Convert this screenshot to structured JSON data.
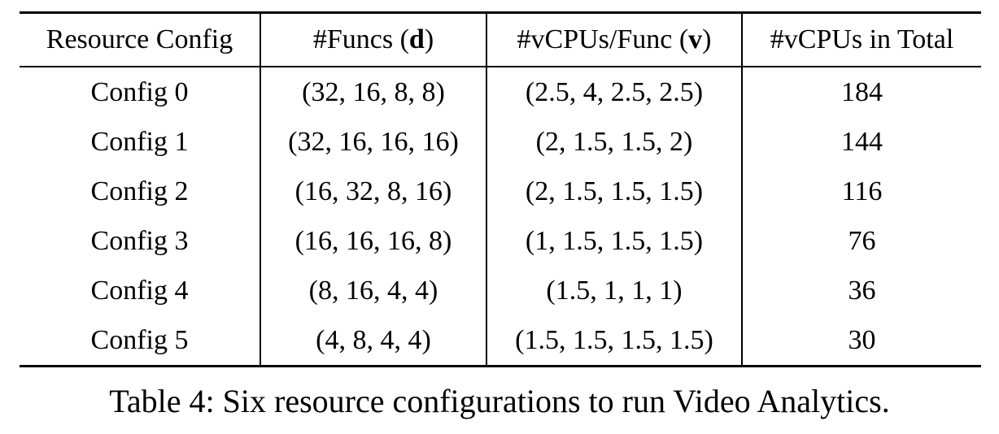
{
  "table": {
    "headers": [
      {
        "text": "Resource Config"
      },
      {
        "pre": "#Funcs (",
        "bold": "d",
        "post": ")"
      },
      {
        "pre": "#vCPUs/Func (",
        "bold": "v",
        "post": ")"
      },
      {
        "text": "#vCPUs in Total"
      }
    ],
    "rows": [
      [
        "Config 0",
        "(32, 16, 8, 8)",
        "(2.5, 4, 2.5, 2.5)",
        "184"
      ],
      [
        "Config 1",
        "(32, 16, 16, 16)",
        "(2, 1.5, 1.5, 2)",
        "144"
      ],
      [
        "Config 2",
        "(16, 32, 8, 16)",
        "(2, 1.5, 1.5, 1.5)",
        "116"
      ],
      [
        "Config 3",
        "(16, 16, 16, 8)",
        "(1, 1.5, 1.5, 1.5)",
        "76"
      ],
      [
        "Config 4",
        "(8, 16, 4, 4)",
        "(1.5, 1, 1, 1)",
        "36"
      ],
      [
        "Config 5",
        "(4, 8, 4, 4)",
        "(1.5, 1.5, 1.5, 1.5)",
        "30"
      ]
    ]
  },
  "caption": "Table 4: Six resource configurations to run Video Analytics."
}
